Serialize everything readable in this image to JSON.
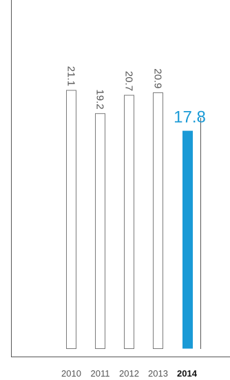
{
  "chart_data": {
    "type": "bar",
    "categories": [
      "2010",
      "2011",
      "2012",
      "2013",
      "2014"
    ],
    "values": [
      21.1,
      19.2,
      20.7,
      20.9,
      17.8
    ],
    "value_labels": [
      "21.1",
      "19.2",
      "20.7",
      "20.9",
      "17.8"
    ],
    "highlight_index": 4,
    "title": "",
    "xlabel": "",
    "ylabel": "",
    "grid": false,
    "colors": {
      "highlight": "#1a9ad6",
      "outline": "#7a7a7a",
      "axis": "#555555"
    }
  }
}
